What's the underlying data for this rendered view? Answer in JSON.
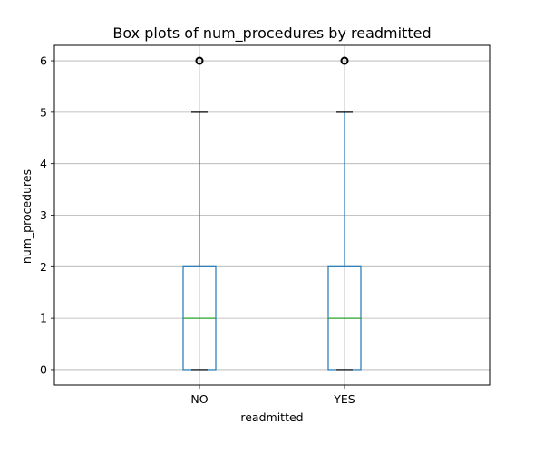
{
  "chart_data": {
    "type": "box",
    "title": "Box plots of num_procedures by readmitted",
    "xlabel": "readmitted",
    "ylabel": "num_procedures",
    "categories": [
      "NO",
      "YES"
    ],
    "ylim": [
      -0.3,
      6.3
    ],
    "yticks": [
      0,
      1,
      2,
      3,
      4,
      5,
      6
    ],
    "grid": true,
    "boxes": [
      {
        "category": "NO",
        "whisker_low": 0,
        "q1": 0,
        "median": 1,
        "q3": 2,
        "whisker_high": 5,
        "outliers": [
          6
        ]
      },
      {
        "category": "YES",
        "whisker_low": 0,
        "q1": 0,
        "median": 1,
        "q3": 2,
        "whisker_high": 5,
        "outliers": [
          6
        ]
      }
    ],
    "colors": {
      "box": "#1f77b4",
      "median": "#2ca02c",
      "cap": "#000000",
      "outlier": "#000000",
      "grid": "#b0b0b0"
    }
  }
}
